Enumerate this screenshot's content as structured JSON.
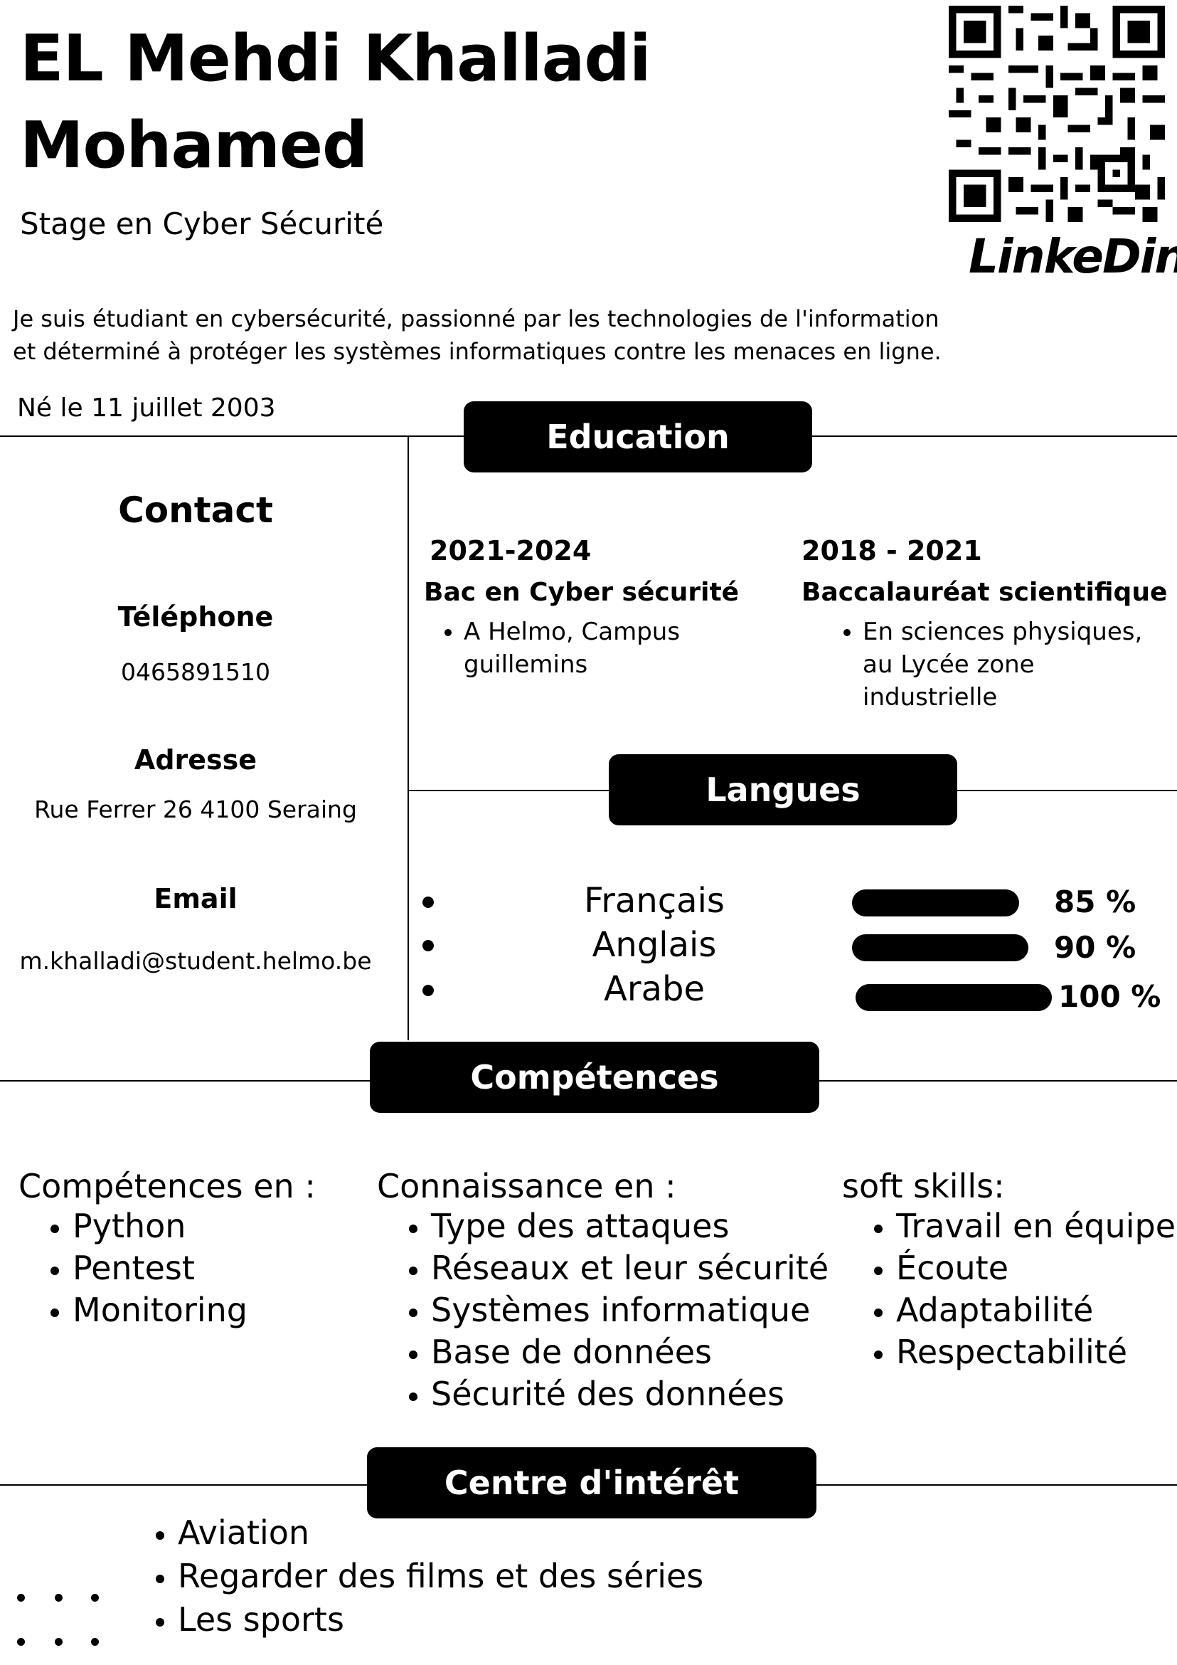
{
  "header": {
    "name_line1": "EL Mehdi Khalladi",
    "name_line2": "Mohamed",
    "subtitle": "Stage en Cyber Sécurité",
    "summary_line1": "Je suis étudiant en cybersécurité, passionné par les technologies de l'information",
    "summary_line2": "et déterminé à protéger les systèmes informatiques contre les menaces en ligne.",
    "birth": "Né le 11 juillet 2003",
    "qr_label": "LinkeDin"
  },
  "contact": {
    "title": "Contact",
    "phone_label": "Téléphone",
    "phone": "0465891510",
    "address_label": "Adresse",
    "address": "Rue Ferrer 26 4100 Seraing",
    "email_label": "Email",
    "email": "m.khalladi@student.helmo.be"
  },
  "education": {
    "title": "Education",
    "items": [
      {
        "years": "2021-2024",
        "degree": "Bac en Cyber sécurité",
        "detail_line1": "A Helmo, Campus",
        "detail_line2": "guillemins"
      },
      {
        "years": "2018 - 2021",
        "degree": "Baccalauréat scientifique",
        "detail_line1": "En sciences physiques,",
        "detail_line2": "au Lycée zone industrielle"
      }
    ]
  },
  "languages": {
    "title": "Langues",
    "items": [
      {
        "name": "Français",
        "level": "85 %",
        "fraction": 0.85
      },
      {
        "name": "Anglais",
        "level": "90 %",
        "fraction": 0.9
      },
      {
        "name": "Arabe",
        "level": "100 %",
        "fraction": 1.0
      }
    ]
  },
  "skills": {
    "title": "Compétences",
    "columns": [
      {
        "heading": "Compétences en :",
        "items": [
          "Python",
          "Pentest",
          "Monitoring"
        ]
      },
      {
        "heading": "Connaissance en :",
        "items": [
          "Type des attaques",
          "Réseaux et leur sécurité",
          "Systèmes informatique",
          "Base de données",
          "Sécurité des données"
        ]
      },
      {
        "heading": "soft skills:",
        "items": [
          "Travail en équipe",
          "Écoute",
          "Adaptabilité",
          "Respectabilité"
        ]
      }
    ]
  },
  "interests": {
    "title": "Centre d'intérêt",
    "items": [
      "Aviation",
      "Regarder des films et des séries",
      "Les sports"
    ]
  }
}
